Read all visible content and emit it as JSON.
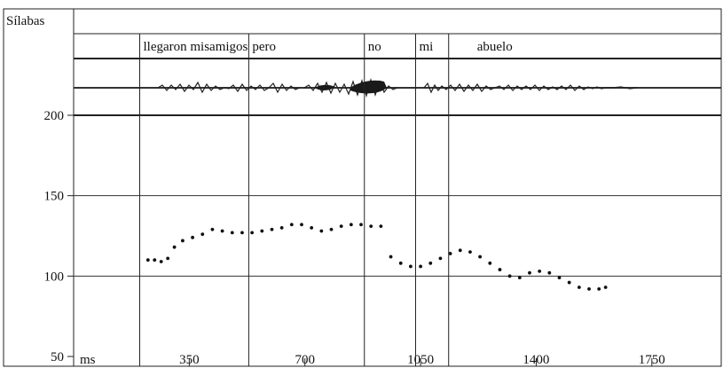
{
  "chart_data": {
    "type": "scatter",
    "title": "",
    "row_label": "Sílabas",
    "syllables": [
      "llegaron misamigos",
      "pero",
      "no",
      "mi",
      "abuelo"
    ],
    "x_unit": "ms",
    "x_ticks": [
      350,
      700,
      1050,
      1400,
      1750
    ],
    "x_range": [
      0,
      1960
    ],
    "y_ticks": [
      200,
      150,
      100,
      50
    ],
    "y_range": [
      50,
      200
    ],
    "boundaries_ms": [
      200,
      530,
      880,
      1035,
      1135
    ],
    "grid": "horizontal at y ticks",
    "series": [
      {
        "points": [
          [
            225,
            110
          ],
          [
            245,
            110
          ],
          [
            265,
            109
          ],
          [
            285,
            111
          ],
          [
            305,
            118
          ],
          [
            330,
            122
          ],
          [
            360,
            124
          ],
          [
            390,
            126
          ],
          [
            420,
            129
          ],
          [
            450,
            128
          ],
          [
            480,
            127
          ],
          [
            510,
            127
          ],
          [
            540,
            127
          ],
          [
            570,
            128
          ],
          [
            600,
            129
          ],
          [
            630,
            130
          ],
          [
            660,
            132
          ],
          [
            690,
            132
          ],
          [
            720,
            130
          ],
          [
            750,
            128
          ],
          [
            780,
            129
          ],
          [
            810,
            131
          ],
          [
            840,
            132
          ],
          [
            870,
            132
          ],
          [
            900,
            131
          ],
          [
            930,
            131
          ]
        ]
      },
      {
        "points": [
          [
            960,
            112
          ],
          [
            990,
            108
          ],
          [
            1020,
            106
          ],
          [
            1050,
            106
          ],
          [
            1080,
            108
          ],
          [
            1110,
            111
          ],
          [
            1140,
            114
          ],
          [
            1170,
            116
          ],
          [
            1200,
            115
          ],
          [
            1230,
            112
          ],
          [
            1260,
            108
          ],
          [
            1290,
            104
          ],
          [
            1320,
            100
          ],
          [
            1350,
            99
          ],
          [
            1380,
            102
          ],
          [
            1410,
            103
          ],
          [
            1440,
            102
          ],
          [
            1470,
            99
          ],
          [
            1500,
            96
          ],
          [
            1530,
            93
          ],
          [
            1560,
            92
          ],
          [
            1590,
            92
          ],
          [
            1610,
            93
          ]
        ]
      }
    ]
  }
}
